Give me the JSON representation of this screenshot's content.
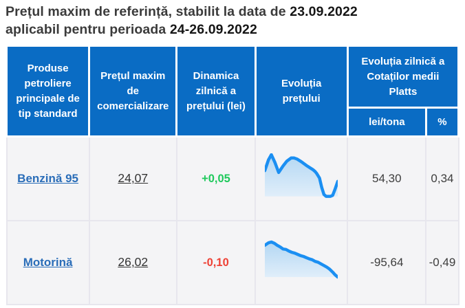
{
  "title": {
    "line1": "Prețul maxim de referință, stabilit la data de ",
    "line1_date": "23.09.2022",
    "line2": "aplicabil pentru perioada ",
    "line2_date": "24-26.09.2022"
  },
  "table": {
    "headers": {
      "products": "Produse\npetroliere\nprincipale de\ntip standard",
      "max_price": "Prețul maxim\nde\ncomercializare",
      "daily_dynamics": "Dinamica\nzilnică a\nprețului (lei)",
      "price_evolution": "Evoluția\nprețului",
      "platts": "Evoluția zilnică a\nCotaților medii\nPlatts",
      "lei_tona": "lei/tona",
      "percent": "%"
    },
    "rows": [
      {
        "product": "Benzină 95",
        "max_price": "24,07",
        "dynamics": "+0,05",
        "dynamics_direction": "up",
        "platts_lei": "54,30",
        "platts_pct": "0,34"
      },
      {
        "product": "Motorină",
        "max_price": "26,02",
        "dynamics": "-0,10",
        "dynamics_direction": "down",
        "platts_lei": "-95,64",
        "platts_pct": "-0,49"
      }
    ]
  },
  "colors": {
    "header_bg": "#0a6cc4",
    "header_text": "#ffffff",
    "body_cell_bg": "#f4f4f6",
    "cell_border": "#e7e6ed",
    "link": "#2a6db8",
    "positive": "#1fc95c",
    "negative": "#ee4135",
    "sparkline": "#1b8ff2"
  },
  "chart_data": [
    {
      "type": "area",
      "title": "Evoluția prețului — Benzină 95 (sparkline, no axes)",
      "x": "time (unlabeled)",
      "y": "price level, normalized 0-100 from top (0 = highest)",
      "points": [
        [
          0,
          37
        ],
        [
          5,
          14
        ],
        [
          9,
          3
        ],
        [
          14,
          20
        ],
        [
          19,
          41
        ],
        [
          25,
          27
        ],
        [
          30,
          17
        ],
        [
          36,
          10
        ],
        [
          40,
          10
        ],
        [
          44,
          12
        ],
        [
          50,
          18
        ],
        [
          58,
          27
        ],
        [
          63,
          32
        ],
        [
          66,
          35
        ],
        [
          69,
          39
        ],
        [
          71,
          43
        ],
        [
          75,
          53
        ],
        [
          78,
          73
        ],
        [
          81,
          88
        ],
        [
          84,
          92
        ],
        [
          90,
          92
        ],
        [
          93,
          90
        ],
        [
          96,
          78
        ],
        [
          100,
          60
        ]
      ],
      "line_color": "#1b8ff2",
      "fill_top": "#b3d7f3",
      "fill_bottom": "#e0eefa"
    },
    {
      "type": "area",
      "title": "Evoluția prețului — Motorină (sparkline, no axes)",
      "x": "time (unlabeled)",
      "y": "price level, normalized 0-100 from top (0 = highest)",
      "points": [
        [
          0,
          13
        ],
        [
          5,
          7
        ],
        [
          9,
          5
        ],
        [
          13,
          8
        ],
        [
          17,
          13
        ],
        [
          21,
          17
        ],
        [
          25,
          22
        ],
        [
          29,
          23
        ],
        [
          33,
          27
        ],
        [
          37,
          30
        ],
        [
          41,
          32
        ],
        [
          45,
          35
        ],
        [
          49,
          38
        ],
        [
          53,
          40
        ],
        [
          57,
          43
        ],
        [
          61,
          46
        ],
        [
          65,
          48
        ],
        [
          69,
          52
        ],
        [
          73,
          54
        ],
        [
          77,
          58
        ],
        [
          81,
          62
        ],
        [
          85,
          66
        ],
        [
          89,
          71
        ],
        [
          93,
          78
        ],
        [
          96,
          84
        ],
        [
          100,
          90
        ]
      ],
      "line_color": "#1b8ff2",
      "fill_top": "#b3d7f3",
      "fill_bottom": "#e0eefa"
    }
  ]
}
